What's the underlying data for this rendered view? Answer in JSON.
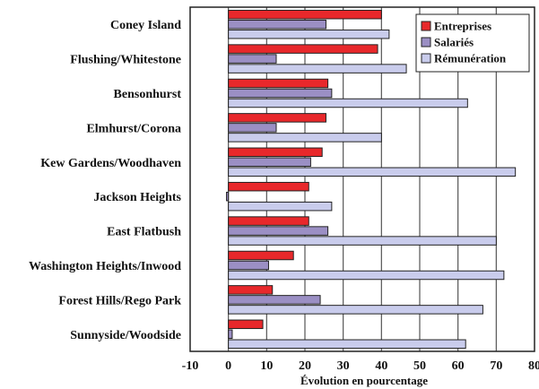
{
  "chart_data": {
    "type": "bar",
    "orientation": "horizontal",
    "categories": [
      "Coney Island",
      "Flushing/Whitestone",
      "Bensonhurst",
      "Elmhurst/Corona",
      "Kew Gardens/Woodhaven",
      "Jackson Heights",
      "East Flatbush",
      "Washington Heights/Inwood",
      "Forest Hills/Rego Park",
      "Sunnyside/Woodside"
    ],
    "series": [
      {
        "name": "Entreprises",
        "color": "#e8282b",
        "values": [
          40,
          39,
          26,
          25.5,
          24.5,
          21,
          21,
          17,
          11.5,
          9
        ]
      },
      {
        "name": "Salariés",
        "color": "#9b8fc4",
        "values": [
          25.5,
          12.5,
          27,
          12.5,
          21.5,
          -0.5,
          26,
          10.5,
          24,
          1
        ]
      },
      {
        "name": "Rémunération",
        "color": "#c9ccec",
        "values": [
          42,
          46.5,
          62.5,
          40,
          75,
          27,
          70,
          72,
          66.5,
          62
        ]
      }
    ],
    "xlabel": "Évolution en pourcentage",
    "ylabel": "",
    "xlim": [
      -10,
      80
    ],
    "xticks": [
      "-10",
      "0",
      "10",
      "20",
      "30",
      "40",
      "50",
      "60",
      "70",
      "80"
    ],
    "grid": true,
    "legend_position": "top-right"
  }
}
